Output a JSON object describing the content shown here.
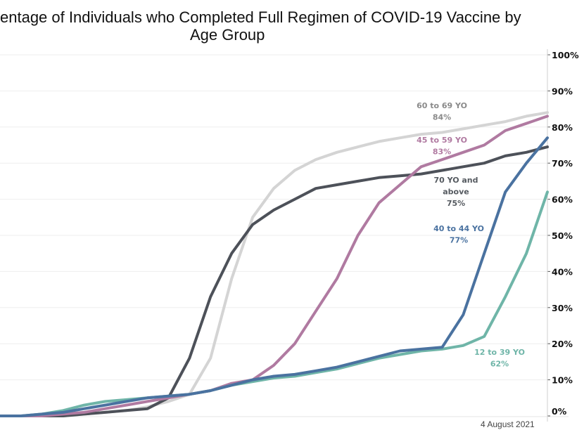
{
  "chart_data": {
    "type": "line",
    "title_line1": "entage of Individuals who Completed Full Regimen of COVID-19 Vaccine by",
    "title_line2": "Age Group",
    "ylim": [
      0,
      100
    ],
    "y_axis_position": "right",
    "yticks": [
      "0%",
      "10%",
      "20%",
      "30%",
      "40%",
      "50%",
      "60%",
      "70%",
      "80%",
      "90%",
      "100%"
    ],
    "grid": true,
    "footnote": "4 August 2021",
    "series": [
      {
        "name": "60 to 69 YO",
        "end_label": "84%",
        "color": "#d4d4d4",
        "values": [
          0,
          0,
          0,
          0,
          0.5,
          1,
          1.5,
          2.5,
          4,
          6,
          16,
          38,
          55,
          63,
          68,
          71,
          73,
          74.5,
          76,
          77,
          78,
          78.5,
          79.5,
          80.5,
          81.5,
          83,
          84
        ]
      },
      {
        "name": "70 YO and above",
        "name_lines": [
          "70 YO and",
          "above"
        ],
        "end_label": "75%",
        "color": "#4d5159",
        "values": [
          0,
          0,
          0,
          0,
          0.5,
          1,
          1.5,
          2,
          5,
          16,
          33,
          45,
          53,
          57,
          60,
          63,
          64,
          65,
          66,
          66.5,
          67,
          68,
          69,
          70,
          72,
          73,
          74.5
        ]
      },
      {
        "name": "45 to 59 YO",
        "end_label": "83%",
        "color": "#b07aa1",
        "values": [
          0,
          0,
          0,
          0.5,
          1,
          2,
          3,
          4,
          5,
          6,
          7,
          9,
          10,
          14,
          20,
          29,
          38,
          50,
          59,
          64,
          69,
          71,
          73,
          75,
          79,
          81,
          83
        ]
      },
      {
        "name": "12 to 39 YO",
        "end_label": "62%",
        "color": "#6fb5a8",
        "values": [
          0,
          0,
          0.5,
          1.5,
          3,
          4,
          4.5,
          5,
          5.5,
          6,
          7,
          8.5,
          9.5,
          10.5,
          11,
          12,
          13,
          14.5,
          16,
          17,
          18,
          18.5,
          19.5,
          22,
          33,
          45,
          62
        ]
      },
      {
        "name": "40 to 44 YO",
        "end_label": "77%",
        "color": "#4a72a0",
        "values": [
          0,
          0,
          0.5,
          1,
          2,
          3,
          4,
          5,
          5.5,
          6,
          7,
          8.5,
          10,
          11,
          11.5,
          12.5,
          13.5,
          15,
          16.5,
          18,
          18.5,
          19,
          28,
          45,
          62,
          70,
          77
        ]
      }
    ],
    "label_text_colors": {
      "60 to 69 YO": "#8a8a8a",
      "45 to 59 YO": "#b07aa1",
      "70 YO and above": "#555a60",
      "40 to 44 YO": "#4a72a0",
      "12 to 39 YO": "#6fb5a8"
    }
  }
}
